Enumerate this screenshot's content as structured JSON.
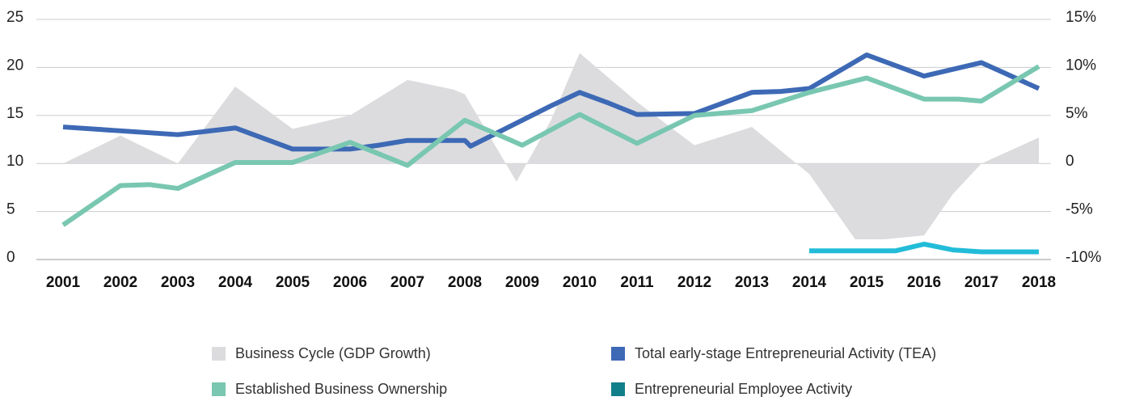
{
  "chart_data": {
    "type": "line",
    "xlim": [
      2001,
      2018
    ],
    "xticks": [
      2001,
      2002,
      2003,
      2004,
      2005,
      2006,
      2007,
      2008,
      2009,
      2010,
      2011,
      2012,
      2013,
      2014,
      2015,
      2016,
      2017,
      2018
    ],
    "ylim": [
      0,
      25
    ],
    "yticks": [
      0,
      5,
      10,
      15,
      20,
      25
    ],
    "y2lim": [
      -10,
      15
    ],
    "y2ticks": [
      {
        "value": -10,
        "label": "-10%"
      },
      {
        "value": -5,
        "label": "-5%"
      },
      0,
      {
        "value": 5,
        "label": "5%"
      },
      {
        "value": 10,
        "label": "10%"
      },
      {
        "value": 15,
        "label": "15%"
      }
    ],
    "grid": true,
    "legend": "bottom",
    "series": [
      {
        "name": "Business Cycle (GDP Growth)",
        "type": "area",
        "axis": "y2",
        "color": "#dcdcde",
        "x": [
          2001,
          2002,
          2003,
          2004,
          2005,
          2006,
          2007,
          2007.8,
          2008,
          2008.9,
          2009.5,
          2010,
          2011,
          2012,
          2013,
          2014,
          2014.8,
          2015.3,
          2016,
          2016.5,
          2017,
          2018
        ],
        "values": [
          0,
          2.9,
          0,
          8.0,
          3.6,
          5.0,
          8.7,
          7.7,
          7.2,
          -1.9,
          4.5,
          11.5,
          6.4,
          1.9,
          3.8,
          -1.1,
          -7.9,
          -7.9,
          -7.5,
          -3.2,
          0,
          2.7
        ]
      },
      {
        "name": "Total early-stage Entrepreneurial Activity (TEA)",
        "type": "line",
        "color": "#3d69b5",
        "x": [
          2001,
          2002,
          2003,
          2004,
          2005,
          2006,
          2006.5,
          2007,
          2008,
          2008.1,
          2009.5,
          2010,
          2010.5,
          2011,
          2012,
          2013,
          2013.5,
          2014,
          2015,
          2016,
          2017,
          2018
        ],
        "values": [
          13.8,
          13.4,
          13.0,
          13.7,
          11.5,
          11.5,
          11.9,
          12.4,
          12.4,
          11.8,
          16.0,
          17.4,
          16.3,
          15.1,
          15.2,
          17.4,
          17.5,
          17.8,
          21.3,
          19.1,
          20.5,
          17.8
        ]
      },
      {
        "name": "Established Business Ownership",
        "type": "line",
        "color": "#79c7b1",
        "x": [
          2001,
          2002,
          2002.5,
          2003,
          2004,
          2005,
          2006,
          2007,
          2008,
          2009,
          2010,
          2011,
          2012,
          2013,
          2014,
          2015,
          2016,
          2016.6,
          2017,
          2018
        ],
        "values": [
          3.6,
          7.7,
          7.8,
          7.4,
          10.1,
          10.1,
          12.2,
          9.8,
          14.5,
          11.9,
          15.1,
          12.1,
          15.0,
          15.5,
          17.4,
          18.9,
          16.7,
          16.7,
          16.5,
          20.1
        ]
      },
      {
        "name": "Entrepreneurial Employee Activity",
        "type": "line",
        "color": "#22bcd8",
        "legend_color": "#117f8a",
        "x": [
          2014,
          2015,
          2015.5,
          2016,
          2016.5,
          2017,
          2018
        ],
        "values": [
          0.9,
          0.9,
          0.9,
          1.6,
          1.0,
          0.8,
          0.8
        ]
      }
    ]
  }
}
